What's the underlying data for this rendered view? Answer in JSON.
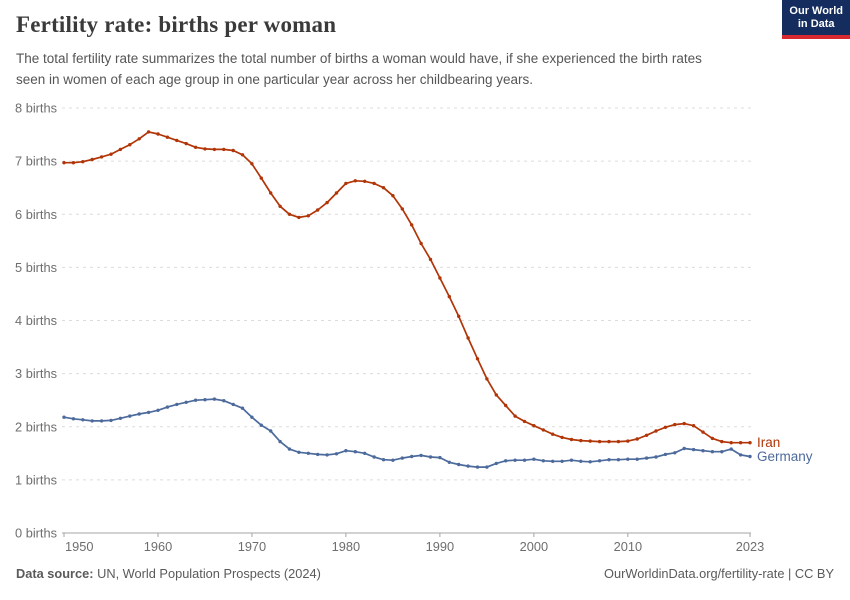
{
  "header": {
    "title": "Fertility rate: births per woman",
    "subtitle": "The total fertility rate summarizes the total number of births a woman would have, if she experienced the birth rates seen in women of each age group in one particular year across her childbearing years.",
    "logo": {
      "line1": "Our World",
      "line2": "in Data"
    }
  },
  "footer": {
    "source_label": "Data source:",
    "source_value": " UN, World Population Prospects (2024)",
    "credit": "OurWorldinData.org/fertility-rate | CC BY"
  },
  "colors": {
    "iran": "#B13507",
    "germany": "#4C6A9C",
    "grid": "#dcdcdc",
    "axis": "#a5a5a5",
    "tick_text": "#6e6e6e"
  },
  "chart_data": {
    "type": "line",
    "title": "Fertility rate: births per woman",
    "xlabel": "",
    "ylabel": "births per woman",
    "ylim": [
      0,
      8
    ],
    "xlim": [
      1950,
      2023
    ],
    "grid": "horizontal dashed",
    "legend_position": "labels at right end of lines",
    "y_ticks": [
      {
        "value": 0,
        "label": "0 births"
      },
      {
        "value": 1,
        "label": "1 births"
      },
      {
        "value": 2,
        "label": "2 births"
      },
      {
        "value": 3,
        "label": "3 births"
      },
      {
        "value": 4,
        "label": "4 births"
      },
      {
        "value": 5,
        "label": "5 births"
      },
      {
        "value": 6,
        "label": "6 births"
      },
      {
        "value": 7,
        "label": "7 births"
      },
      {
        "value": 8,
        "label": "8 births"
      }
    ],
    "x_ticks": [
      {
        "value": 1950,
        "label": "1950"
      },
      {
        "value": 1960,
        "label": "1960"
      },
      {
        "value": 1970,
        "label": "1970"
      },
      {
        "value": 1980,
        "label": "1980"
      },
      {
        "value": 1990,
        "label": "1990"
      },
      {
        "value": 2000,
        "label": "2000"
      },
      {
        "value": 2010,
        "label": "2010"
      },
      {
        "value": 2023,
        "label": "2023"
      }
    ],
    "x": [
      1950,
      1951,
      1952,
      1953,
      1954,
      1955,
      1956,
      1957,
      1958,
      1959,
      1960,
      1961,
      1962,
      1963,
      1964,
      1965,
      1966,
      1967,
      1968,
      1969,
      1970,
      1971,
      1972,
      1973,
      1974,
      1975,
      1976,
      1977,
      1978,
      1979,
      1980,
      1981,
      1982,
      1983,
      1984,
      1985,
      1986,
      1987,
      1988,
      1989,
      1990,
      1991,
      1992,
      1993,
      1994,
      1995,
      1996,
      1997,
      1998,
      1999,
      2000,
      2001,
      2002,
      2003,
      2004,
      2005,
      2006,
      2007,
      2008,
      2009,
      2010,
      2011,
      2012,
      2013,
      2014,
      2015,
      2016,
      2017,
      2018,
      2019,
      2020,
      2021,
      2022,
      2023
    ],
    "series": [
      {
        "name": "Iran",
        "color": "#B13507",
        "values": [
          6.97,
          6.97,
          6.99,
          7.03,
          7.08,
          7.13,
          7.22,
          7.31,
          7.42,
          7.55,
          7.51,
          7.45,
          7.39,
          7.33,
          7.26,
          7.23,
          7.22,
          7.22,
          7.2,
          7.12,
          6.95,
          6.68,
          6.4,
          6.15,
          6.0,
          5.94,
          5.97,
          6.08,
          6.22,
          6.4,
          6.58,
          6.63,
          6.62,
          6.58,
          6.5,
          6.35,
          6.1,
          5.8,
          5.45,
          5.15,
          4.8,
          4.45,
          4.08,
          3.67,
          3.28,
          2.9,
          2.6,
          2.4,
          2.2,
          2.1,
          2.02,
          1.94,
          1.86,
          1.8,
          1.76,
          1.74,
          1.73,
          1.72,
          1.72,
          1.72,
          1.73,
          1.77,
          1.84,
          1.92,
          1.99,
          2.04,
          2.06,
          2.02,
          1.9,
          1.78,
          1.72,
          1.7,
          1.7,
          1.7
        ]
      },
      {
        "name": "Germany",
        "color": "#4C6A9C",
        "values": [
          2.18,
          2.15,
          2.13,
          2.11,
          2.11,
          2.12,
          2.16,
          2.2,
          2.24,
          2.27,
          2.31,
          2.37,
          2.42,
          2.46,
          2.5,
          2.51,
          2.52,
          2.49,
          2.42,
          2.35,
          2.18,
          2.03,
          1.92,
          1.72,
          1.58,
          1.52,
          1.5,
          1.48,
          1.47,
          1.49,
          1.55,
          1.53,
          1.5,
          1.43,
          1.38,
          1.37,
          1.41,
          1.44,
          1.46,
          1.43,
          1.42,
          1.33,
          1.29,
          1.26,
          1.24,
          1.24,
          1.31,
          1.36,
          1.37,
          1.37,
          1.39,
          1.36,
          1.35,
          1.35,
          1.37,
          1.35,
          1.34,
          1.36,
          1.38,
          1.38,
          1.39,
          1.39,
          1.41,
          1.43,
          1.48,
          1.51,
          1.59,
          1.57,
          1.55,
          1.53,
          1.53,
          1.58,
          1.47,
          1.44
        ]
      }
    ]
  }
}
